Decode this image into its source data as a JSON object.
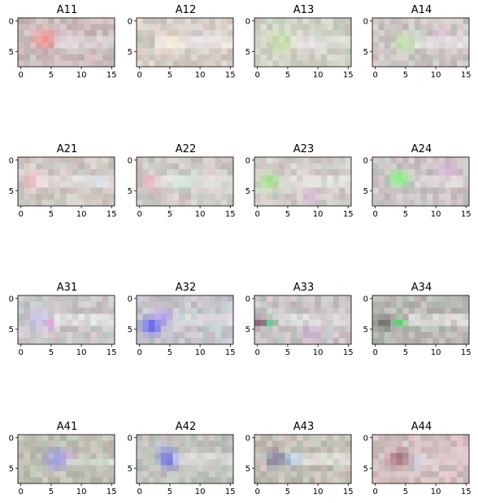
{
  "chart_data": {
    "type": "heatmap",
    "description_grid": "4 x 4 small-multiple image plots, each a 8x16 RGB pixel grid",
    "xlim": [
      -0.5,
      15.5
    ],
    "ylim": [
      7.5,
      -0.5
    ],
    "xticks": [
      0,
      5,
      10,
      15
    ],
    "yticks": [
      0,
      5
    ],
    "grid": false,
    "panels": [
      {
        "title": "A11",
        "base": "#cbbcbd",
        "blobs": [
          {
            "x": 4,
            "y": 3,
            "r": 3.0,
            "color": "#ff8a8a",
            "k": 0.8
          },
          {
            "x": 8,
            "y": 3.5,
            "r": 2.5,
            "color": "#f0d8e0",
            "k": 0.6
          }
        ],
        "streak": {
          "y": 3.5,
          "x0": 6,
          "x1": 15,
          "color": "#f2f2f8",
          "k": 0.7
        }
      },
      {
        "title": "A12",
        "base": "#d6cec8",
        "blobs": [
          {
            "x": 5,
            "y": 3.5,
            "r": 3.0,
            "color": "#fff0c8",
            "k": 0.7
          },
          {
            "x": 10,
            "y": 3,
            "r": 2.5,
            "color": "#e8d8f0",
            "k": 0.5
          }
        ],
        "streak": {
          "y": 3.5,
          "x0": 3,
          "x1": 15,
          "color": "#ffffff",
          "k": 0.65
        }
      },
      {
        "title": "A13",
        "base": "#cfd0c4",
        "blobs": [
          {
            "x": 4,
            "y": 3.5,
            "r": 3.0,
            "color": "#c8f0a0",
            "k": 0.75
          },
          {
            "x": 9,
            "y": 4,
            "r": 2.5,
            "color": "#f0d8f8",
            "k": 0.5
          }
        ],
        "streak": {
          "y": 3.5,
          "x0": 6,
          "x1": 15,
          "color": "#ffffff",
          "k": 0.6
        }
      },
      {
        "title": "A14",
        "base": "#ccc6c4",
        "blobs": [
          {
            "x": 5,
            "y": 3.5,
            "r": 3.0,
            "color": "#c0f0a8",
            "k": 0.75
          },
          {
            "x": 11,
            "y": 2.5,
            "r": 2.5,
            "color": "#f0c8e8",
            "k": 0.55
          }
        ],
        "streak": {
          "y": 3.5,
          "x0": 7,
          "x1": 15,
          "color": "#ffffff",
          "k": 0.65
        }
      },
      {
        "title": "A21",
        "base": "#cfc8c3",
        "blobs": [
          {
            "x": 2,
            "y": 3.5,
            "r": 3.0,
            "color": "#ffb8c8",
            "k": 0.7
          },
          {
            "x": 13,
            "y": 3.5,
            "r": 2.0,
            "color": "#b0d0f0",
            "k": 0.65
          }
        ],
        "streak": {
          "y": 3.5,
          "x0": 3,
          "x1": 15,
          "color": "#ffffff",
          "k": 0.6
        }
      },
      {
        "title": "A22",
        "base": "#cfcac6",
        "blobs": [
          {
            "x": 2,
            "y": 3.5,
            "r": 2.5,
            "color": "#ffb0c0",
            "k": 0.7
          },
          {
            "x": 7,
            "y": 3.5,
            "r": 2.5,
            "color": "#b0f0c8",
            "k": 0.6
          }
        ],
        "streak": {
          "y": 3.5,
          "x0": 3,
          "x1": 15,
          "color": "#ffffff",
          "k": 0.6
        }
      },
      {
        "title": "A23",
        "base": "#d0ccc8",
        "blobs": [
          {
            "x": 2,
            "y": 3.5,
            "r": 2.5,
            "color": "#90f070",
            "k": 0.75
          },
          {
            "x": 9,
            "y": 6,
            "r": 2.5,
            "color": "#d8b0e0",
            "k": 0.6
          }
        ],
        "streak": {
          "y": 3.5,
          "x0": 4,
          "x1": 15,
          "color": "#ffffff",
          "k": 0.6
        }
      },
      {
        "title": "A24",
        "base": "#cbc4c4",
        "blobs": [
          {
            "x": 4,
            "y": 3,
            "r": 2.5,
            "color": "#70ff70",
            "k": 0.85
          },
          {
            "x": 12,
            "y": 1.5,
            "r": 2.5,
            "color": "#e0a8e8",
            "k": 0.6
          }
        ],
        "streak": {
          "y": 3.5,
          "x0": 7,
          "x1": 15,
          "color": "#ffffff",
          "k": 0.55
        }
      },
      {
        "title": "A31",
        "base": "#c9c6c8",
        "blobs": [
          {
            "x": 3,
            "y": 3.5,
            "r": 3.0,
            "color": "#c8c0ff",
            "k": 0.7
          },
          {
            "x": 5,
            "y": 4,
            "r": 1.5,
            "color": "#f090e0",
            "k": 0.7
          }
        ],
        "streak": {
          "y": 3.5,
          "x0": 6,
          "x1": 15,
          "color": "#ffffff",
          "k": 0.7
        }
      },
      {
        "title": "A32",
        "base": "#c6c6cc",
        "blobs": [
          {
            "x": 2,
            "y": 4.5,
            "r": 2.5,
            "color": "#4040ff",
            "k": 0.85
          },
          {
            "x": 4,
            "y": 3,
            "r": 2.5,
            "color": "#b090ff",
            "k": 0.6
          }
        ],
        "streak": {
          "y": 3.5,
          "x0": 6,
          "x1": 15,
          "color": "#ffffff",
          "k": 0.6
        }
      },
      {
        "title": "A33",
        "base": "#c8c4c6",
        "blobs": [
          {
            "x": 0.5,
            "y": 4,
            "r": 1.5,
            "color": "#702050",
            "k": 0.9
          },
          {
            "x": 2,
            "y": 4,
            "r": 1.5,
            "color": "#40d080",
            "k": 0.7
          },
          {
            "x": 9,
            "y": 6,
            "r": 2.5,
            "color": "#d8a8e0",
            "k": 0.55
          }
        ],
        "streak": {
          "y": 3.5,
          "x0": 4,
          "x1": 15,
          "color": "#ffffff",
          "k": 0.65
        }
      },
      {
        "title": "A34",
        "base": "#b8b8b2",
        "blobs": [
          {
            "x": 1.5,
            "y": 4,
            "r": 2.0,
            "color": "#505050",
            "k": 0.85
          },
          {
            "x": 4,
            "y": 4,
            "r": 1.5,
            "color": "#40e060",
            "k": 0.8
          }
        ],
        "streak": {
          "y": 3.5,
          "x0": 6,
          "x1": 15,
          "color": "#ffffff",
          "k": 0.75
        }
      },
      {
        "title": "A41",
        "base": "#bfc0b4",
        "blobs": [
          {
            "x": 6,
            "y": 3.5,
            "r": 3.0,
            "color": "#9090ff",
            "k": 0.75
          },
          {
            "x": 8,
            "y": 3,
            "r": 2.0,
            "color": "#e0a0f0",
            "k": 0.5
          }
        ],
        "streak": {
          "y": 4,
          "x0": 8,
          "x1": 15,
          "color": "#e8fff0",
          "k": 0.45
        }
      },
      {
        "title": "A42",
        "base": "#c0c2bc",
        "blobs": [
          {
            "x": 5,
            "y": 3.5,
            "r": 2.5,
            "color": "#5050ff",
            "k": 0.8
          },
          {
            "x": 4,
            "y": 2,
            "r": 2.0,
            "color": "#9090e0",
            "k": 0.5
          }
        ],
        "streak": {
          "y": 3.5,
          "x0": 6,
          "x1": 15,
          "color": "#ffffff",
          "k": 0.7
        }
      },
      {
        "title": "A43",
        "base": "#c3c0b6",
        "blobs": [
          {
            "x": 3,
            "y": 3.5,
            "r": 2.5,
            "color": "#606090",
            "k": 0.75
          },
          {
            "x": 6,
            "y": 3.5,
            "r": 2.0,
            "color": "#80c0ff",
            "k": 0.7
          }
        ],
        "streak": {
          "y": 3.5,
          "x0": 6,
          "x1": 15,
          "color": "#ffffff",
          "k": 0.65
        }
      },
      {
        "title": "A44",
        "base": "#d4c0c0",
        "blobs": [
          {
            "x": 4,
            "y": 3.5,
            "r": 2.5,
            "color": "#905060",
            "k": 0.8
          },
          {
            "x": 7,
            "y": 4,
            "r": 2.0,
            "color": "#b0d0f0",
            "k": 0.55
          }
        ],
        "streak": {
          "y": 3.5,
          "x0": 7,
          "x1": 15,
          "color": "#fff0f0",
          "k": 0.45
        }
      }
    ]
  }
}
